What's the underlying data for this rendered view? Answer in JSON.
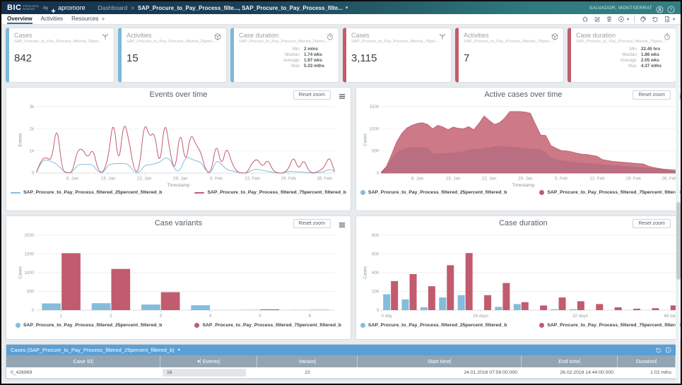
{
  "ui": {
    "reset_zoom": "Reset zoom"
  },
  "topbar": {
    "logo_main": "BIC",
    "logo_sub_top": "PROCESS",
    "logo_sub_bottom": "MINING",
    "by_label": "by",
    "brand": "apromore",
    "nav_item": "Dashboard",
    "breadcrumb_separator": ">",
    "breadcrumb": "SAP_Procure_to_Pay_Process_filte..., SAP_Procure_to_Pay_Process_filte...",
    "breadcrumb_caret": "▾",
    "user_name": "SALVADOR, MONTSERRAT"
  },
  "tabs": {
    "items": [
      {
        "label": "Overview",
        "active": true
      },
      {
        "label": "Activities",
        "active": false
      },
      {
        "label": "Resources",
        "active": false
      }
    ],
    "add_tab": "+"
  },
  "kpi_cards": [
    {
      "type": "value",
      "title": "Cases",
      "subtitle": "SAP_Procure_to_Pay_Process_filtered_25per...",
      "value": "842",
      "icon": "cases-icon",
      "accent": "#7db8d8"
    },
    {
      "type": "value",
      "title": "Activities",
      "subtitle": "SAP_Procure_to_Pay_Process_filtered_25perc...",
      "value": "15",
      "icon": "cube-icon",
      "accent": "#7db8d8"
    },
    {
      "type": "stats",
      "title": "Case duration",
      "subtitle": "SAP_Procure_to_Pay_Process_filtered_25perc...",
      "icon": "stopwatch-icon",
      "accent": "#7db8d8",
      "stats": [
        [
          "Min",
          "2 mins"
        ],
        [
          "Median",
          "1.74 wks"
        ],
        [
          "Average",
          "1.97 wks"
        ],
        [
          "Max",
          "5.33 mths"
        ]
      ]
    },
    {
      "type": "value",
      "title": "Cases",
      "subtitle": "SAP_Procure_to_Pay_Process_filtered_75per...",
      "value": "3,115",
      "icon": "cases-icon",
      "accent": "#c35b6e"
    },
    {
      "type": "value",
      "title": "Activities",
      "subtitle": "SAP_Procure_to_Pay_Process_filtered_75perc...",
      "value": "7",
      "icon": "cube-icon",
      "accent": "#c35b6e"
    },
    {
      "type": "stats",
      "title": "Case duration",
      "subtitle": "SAP_Procure_to_Pay_Process_filtered_75perc...",
      "icon": "stopwatch-icon",
      "accent": "#c35b6e",
      "stats": [
        [
          "Min",
          "22.45 hrs"
        ],
        [
          "Median",
          "1.86 wks"
        ],
        [
          "Average",
          "2.05 wks"
        ],
        [
          "Max",
          "4.37 mths"
        ]
      ]
    }
  ],
  "chart_data": [
    {
      "name": "events-over-time",
      "type": "line",
      "title": "Events over time",
      "ylabel": "Events",
      "xlabel": "Timestamp",
      "ylim": [
        0,
        3000
      ],
      "yticks": [
        {
          "v": 0,
          "label": "0"
        },
        {
          "v": 1000,
          "label": "1k"
        },
        {
          "v": 2000,
          "label": "2k"
        },
        {
          "v": 3000,
          "label": "3k"
        }
      ],
      "xticks": [
        {
          "pos": 0.121,
          "label": "8. Jan"
        },
        {
          "pos": 0.241,
          "label": "15. Jan"
        },
        {
          "pos": 0.362,
          "label": "22. Jan"
        },
        {
          "pos": 0.483,
          "label": "29. Jan"
        },
        {
          "pos": 0.603,
          "label": "5. Feb"
        },
        {
          "pos": 0.724,
          "label": "12. Feb"
        },
        {
          "pos": 0.845,
          "label": "19. Feb"
        },
        {
          "pos": 0.966,
          "label": "26. Feb"
        }
      ],
      "legend_marker": "line",
      "grid": true,
      "legend_position": "bottom",
      "series": [
        {
          "name": "SAP_Procure_to_Pay_Process_filtered_25percent_filtered_b",
          "color": "#85bcdc",
          "values": [
            30,
            550,
            600,
            520,
            400,
            150,
            0,
            30,
            380,
            390,
            400,
            380,
            50,
            0,
            380,
            420,
            430,
            440,
            380,
            50,
            0,
            350,
            380,
            420,
            480,
            700,
            650,
            100,
            100,
            750,
            650,
            550,
            500,
            100,
            0,
            600,
            400,
            150,
            100,
            50,
            0,
            0,
            150,
            180,
            120,
            80,
            30,
            0,
            0,
            80,
            70,
            50,
            40,
            20,
            0,
            30,
            60,
            180,
            80
          ]
        },
        {
          "name": "SAP_Procure_to_Pay_Process_filtered_75percent_filtered_b",
          "color": "#c25b6d",
          "values": [
            30,
            650,
            700,
            550,
            2300,
            100,
            0,
            30,
            1050,
            1100,
            650,
            1150,
            100,
            0,
            700,
            2600,
            200,
            2450,
            1500,
            100,
            50,
            2400,
            1600,
            1900,
            150,
            2550,
            900,
            0,
            2100,
            300,
            1850,
            1300,
            950,
            50,
            0,
            1450,
            250,
            1250,
            450,
            50,
            0,
            0,
            500,
            650,
            250,
            650,
            100,
            0,
            0,
            150,
            800,
            120,
            650,
            60,
            0,
            100,
            250,
            800,
            50
          ]
        }
      ]
    },
    {
      "name": "active-cases-over-time",
      "type": "area",
      "title": "Active cases over time",
      "ylabel": "Cases",
      "xlabel": "Timestamp",
      "ylim": [
        0,
        1500
      ],
      "yticks": [
        {
          "v": 0,
          "label": "0"
        },
        {
          "v": 500,
          "label": "500"
        },
        {
          "v": 1000,
          "label": "1000"
        },
        {
          "v": 1500,
          "label": "1500"
        }
      ],
      "xticks": [
        {
          "pos": 0.121,
          "label": "8. Jan"
        },
        {
          "pos": 0.241,
          "label": "15. Jan"
        },
        {
          "pos": 0.362,
          "label": "22. Jan"
        },
        {
          "pos": 0.483,
          "label": "29. Jan"
        },
        {
          "pos": 0.603,
          "label": "5. Feb"
        },
        {
          "pos": 0.724,
          "label": "12. Feb"
        },
        {
          "pos": 0.845,
          "label": "19. Feb"
        },
        {
          "pos": 0.966,
          "label": "26. Feb"
        }
      ],
      "legend_marker": "circle",
      "grid": true,
      "legend_position": "bottom",
      "series": [
        {
          "name": "SAP_Procure_to_Pay_Process_filtered_25percent_filtered_b",
          "color": "#85bcdc",
          "values": [
            20,
            120,
            300,
            450,
            520,
            560,
            570,
            575,
            580,
            560,
            430,
            435,
            440,
            450,
            460,
            470,
            480,
            520,
            530,
            540,
            555,
            575,
            595,
            605,
            600,
            590,
            580,
            570,
            560,
            550,
            540,
            530,
            450,
            350,
            300,
            280,
            265,
            250,
            240,
            230,
            220,
            210,
            200,
            190,
            185,
            175,
            165,
            155,
            150,
            140,
            130,
            120,
            110,
            100,
            95,
            90,
            85,
            80,
            40
          ]
        },
        {
          "name": "SAP_Procure_to_Pay_Process_filtered_75percent_filtered_b",
          "color": "#c25b6d",
          "values": [
            20,
            150,
            420,
            700,
            900,
            1020,
            1080,
            1120,
            1140,
            1100,
            1000,
            1080,
            1040,
            980,
            1040,
            1010,
            1000,
            1050,
            980,
            1120,
            1290,
            1190,
            1100,
            1140,
            1240,
            1390,
            1390,
            1390,
            1380,
            1350,
            1100,
            860,
            850,
            620,
            560,
            510,
            500,
            480,
            450,
            430,
            420,
            400,
            380,
            305,
            285,
            265,
            255,
            245,
            235,
            225,
            215,
            205,
            155,
            125,
            105,
            85,
            65,
            55,
            30
          ]
        }
      ]
    },
    {
      "name": "case-variants",
      "type": "bar",
      "title": "Case variants",
      "ylabel": "Cases",
      "xlabel": "",
      "ylim": [
        0,
        2000
      ],
      "yticks": [
        {
          "v": 0,
          "label": "0"
        },
        {
          "v": 500,
          "label": "500"
        },
        {
          "v": 1000,
          "label": "1000"
        },
        {
          "v": 1500,
          "label": "1500"
        },
        {
          "v": 2000,
          "label": "2000"
        }
      ],
      "categories": [
        "1",
        "2",
        "3",
        "4",
        "5",
        "6"
      ],
      "legend_marker": "circle",
      "grid": true,
      "legend_position": "bottom",
      "series": [
        {
          "name": "SAP_Procure_to_Pay_Process_filtered_25percent_filtered_b",
          "color": "#85bcdc",
          "values": [
            180,
            185,
            150,
            130,
            10,
            5
          ]
        },
        {
          "name": "SAP_Procure_to_Pay_Process_filtered_75percent_filtered_b",
          "color": "#c25b6d",
          "values": [
            1520,
            1100,
            480,
            0,
            20,
            8
          ]
        }
      ]
    },
    {
      "name": "case-duration-histogram",
      "type": "bar",
      "title": "Case duration",
      "ylabel": "Cases",
      "xlabel": "",
      "ylim": [
        0,
        800
      ],
      "yticks": [
        {
          "v": 0,
          "label": "0"
        },
        {
          "v": 200,
          "label": "200"
        },
        {
          "v": 400,
          "label": "400"
        },
        {
          "v": 600,
          "label": "600"
        },
        {
          "v": 800,
          "label": "800"
        }
      ],
      "xticks": [
        {
          "pos": 0,
          "label": "0 day"
        },
        {
          "pos": 0.333,
          "label": "16 days"
        },
        {
          "pos": 0.667,
          "label": "32 days"
        },
        {
          "pos": 1,
          "label": "48 days"
        }
      ],
      "legend_marker": "circle",
      "grid": true,
      "legend_position": "bottom",
      "series": [
        {
          "name": "SAP_Procure_to_Pay_Process_filtered_25percent_filtered_b",
          "color": "#85bcdc",
          "values": [
            170,
            115,
            30,
            135,
            160,
            0,
            35,
            65,
            0,
            10,
            10,
            0,
            0,
            0,
            0,
            0
          ]
        },
        {
          "name": "SAP_Procure_to_Pay_Process_filtered_75percent_filtered_b",
          "color": "#c25b6d",
          "values": [
            310,
            385,
            255,
            480,
            610,
            160,
            290,
            85,
            50,
            135,
            95,
            65,
            30,
            15,
            20,
            50
          ]
        }
      ]
    }
  ],
  "table": {
    "title": "Cases (SAP_Procure_to_Pay_Process_filtered_25percent_filtered_b)",
    "caret": "▾",
    "columns": [
      "Case ID",
      "Events",
      "Variant",
      "Start time",
      "End time",
      "Duration"
    ],
    "sort_column": "Events",
    "sort_indicator": "▾",
    "row": [
      "0_426969",
      "16",
      "22",
      "24.01.2018 07:59:00.000",
      "26.02.2018 14:44:00.000",
      "1.02 mths"
    ]
  },
  "colors": {
    "series_blue": "#85bcdc",
    "series_red": "#c25b6d",
    "accent_blue": "#7db8d8",
    "accent_red": "#c35b6e",
    "table_header": "#5b9fd4",
    "table_subheader": "#93a5b2"
  }
}
